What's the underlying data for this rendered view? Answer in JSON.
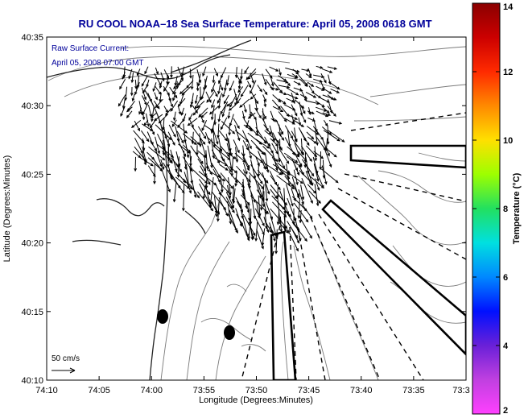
{
  "chart_data": {
    "type": "map-quiver",
    "title": "RU COOL  NOAA–18  Sea Surface Temperature:  April 05, 2008 0618 GMT",
    "annotation_lines": [
      "Raw Surface Current:",
      "April 05, 2008 07:00 GMT"
    ],
    "xlabel": "Longitude (Degrees:Minutes)",
    "ylabel": "Latitude (Degrees:Minutes)",
    "x_ticks": [
      "74:10",
      "74:05",
      "74:00",
      "73:55",
      "73:50",
      "73:45",
      "73:40",
      "73:35",
      "73:3"
    ],
    "y_ticks": [
      "40:35",
      "40:30",
      "40:25",
      "40:20",
      "40:15",
      "40:10"
    ],
    "xlim_minutes_west": [
      10,
      -30
    ],
    "ylim_minutes_north": [
      10,
      35
    ],
    "scale_label": "50 cm/s",
    "colorbar": {
      "label": "Temperature (°C)",
      "ticks": [
        "14",
        "12",
        "10",
        "8",
        "6",
        "4",
        "2"
      ],
      "range": [
        2,
        14
      ],
      "stops": [
        "#8a0000",
        "#cc0000",
        "#ff2a00",
        "#ff8a00",
        "#ffe000",
        "#9dff00",
        "#22e060",
        "#00e0e0",
        "#0088ff",
        "#0010ff",
        "#6a20d8",
        "#c040e0",
        "#ff40ff"
      ]
    }
  },
  "colors": {
    "title": "#00009a",
    "annotation": "#00009a",
    "vector": "#000000",
    "bathymetry": "#777777"
  }
}
